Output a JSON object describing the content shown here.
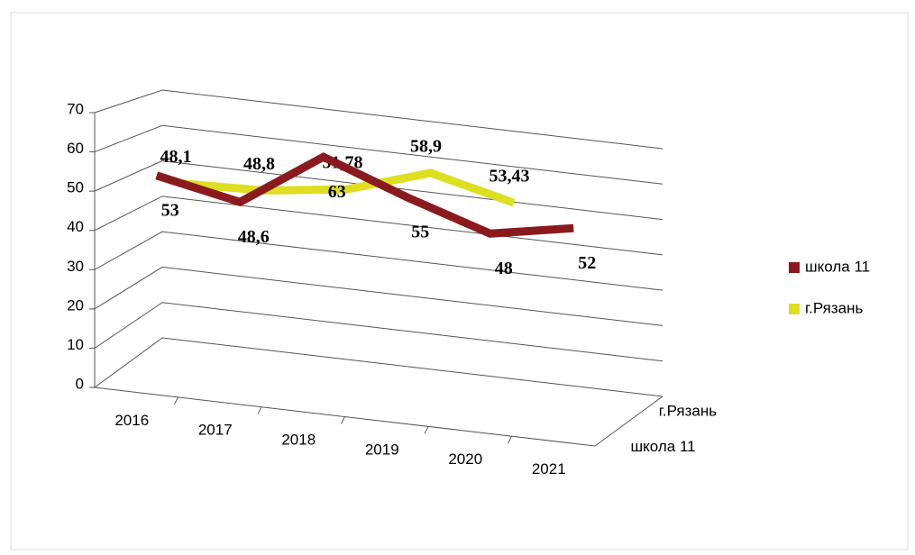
{
  "chart_data": {
    "type": "line3d",
    "categories": [
      "2016",
      "2017",
      "2018",
      "2019",
      "2020",
      "2021"
    ],
    "series": [
      {
        "name": "школа 11",
        "color": "#8b1a1e",
        "values": [
          53,
          48.6,
          63,
          55,
          48,
          52
        ],
        "value_labels": [
          "53",
          "48,6",
          "63",
          "55",
          "48",
          "52"
        ]
      },
      {
        "name": "г.Рязань",
        "color": "#dede22",
        "values": [
          48.1,
          48.8,
          51.78,
          58.9,
          53.43,
          null
        ],
        "value_labels": [
          "48,1",
          "48,8",
          "51,78",
          "58,9",
          "53,43",
          null
        ]
      }
    ],
    "ylim": [
      0,
      70
    ],
    "yticks": [
      0,
      10,
      20,
      30,
      40,
      50,
      60,
      70
    ],
    "grid": true,
    "legend": "right"
  }
}
